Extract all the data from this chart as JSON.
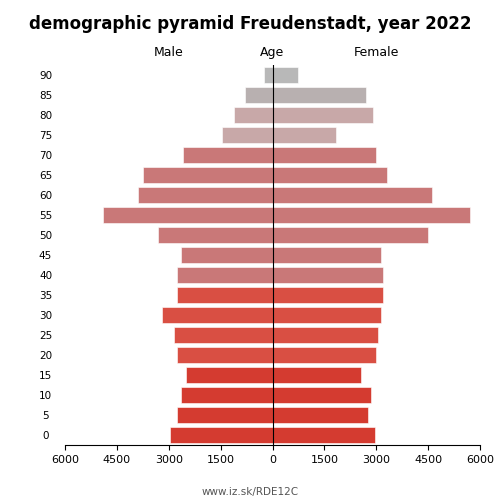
{
  "title": "demographic pyramid Freudenstadt, year 2022",
  "label_male": "Male",
  "label_female": "Female",
  "label_age": "Age",
  "footer": "www.iz.sk/RDE12C",
  "ages": [
    0,
    5,
    10,
    15,
    20,
    25,
    30,
    35,
    40,
    45,
    50,
    55,
    60,
    65,
    70,
    75,
    80,
    85,
    90
  ],
  "male": [
    2950,
    2750,
    2650,
    2500,
    2750,
    2850,
    3200,
    2750,
    2750,
    2650,
    3300,
    4900,
    3900,
    3750,
    2600,
    1450,
    1100,
    800,
    250
  ],
  "female": [
    2950,
    2750,
    2850,
    2550,
    3000,
    3050,
    3150,
    3200,
    3200,
    3150,
    4500,
    5700,
    4600,
    3300,
    3000,
    1850,
    2900,
    2700,
    750
  ],
  "xlim": 6000,
  "xticks": [
    6000,
    4500,
    3000,
    1500,
    0,
    1500,
    3000,
    4500,
    6000
  ],
  "colors": [
    "#d43b30",
    "#d43b30",
    "#d43b30",
    "#d43b30",
    "#d94f43",
    "#d94f43",
    "#d94f43",
    "#d94f43",
    "#c97878",
    "#c97878",
    "#c97878",
    "#c97878",
    "#c97878",
    "#c97878",
    "#c97878",
    "#c8a8a8",
    "#c8a8a8",
    "#b8b0b0",
    "#b8b8b8"
  ],
  "bar_height": 0.82,
  "title_fontsize": 12,
  "label_fontsize": 9,
  "tick_fontsize": 8,
  "age_fontsize": 7.5
}
